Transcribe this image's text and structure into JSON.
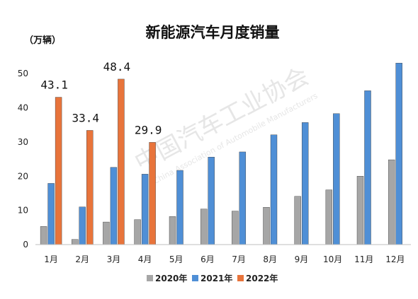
{
  "chart_data": {
    "type": "bar",
    "title": "新能源汽车月度销量",
    "unit_label": "（万辆）",
    "categories": [
      "1月",
      "2月",
      "3月",
      "4月",
      "5月",
      "6月",
      "7月",
      "8月",
      "9月",
      "10月",
      "11月",
      "12月"
    ],
    "ylim": [
      0,
      55
    ],
    "yticks": [
      "0",
      "10",
      "20",
      "30",
      "40",
      "50"
    ],
    "grid": false,
    "legend_position": "bottom",
    "series": [
      {
        "name": "2020年",
        "color": "#a6a6a6",
        "values": [
          5.3,
          1.5,
          6.6,
          7.3,
          8.2,
          10.4,
          9.8,
          10.9,
          14.1,
          16.0,
          20.0,
          24.8
        ]
      },
      {
        "name": "2021年",
        "color": "#4f8fd6",
        "values": [
          17.9,
          11.0,
          22.6,
          20.6,
          21.7,
          25.6,
          27.1,
          32.1,
          35.7,
          38.3,
          45.0,
          53.1
        ]
      },
      {
        "name": "2022年",
        "color": "#e8743b",
        "values": [
          43.1,
          33.4,
          48.4,
          29.9,
          null,
          null,
          null,
          null,
          null,
          null,
          null,
          null
        ]
      }
    ],
    "data_labels": [
      "43.1",
      "33.4",
      "48.4",
      "29.9"
    ]
  },
  "watermark": {
    "text_cn": "中国汽车工业协会",
    "text_en": "China Association of Automobile Manufacturers"
  }
}
